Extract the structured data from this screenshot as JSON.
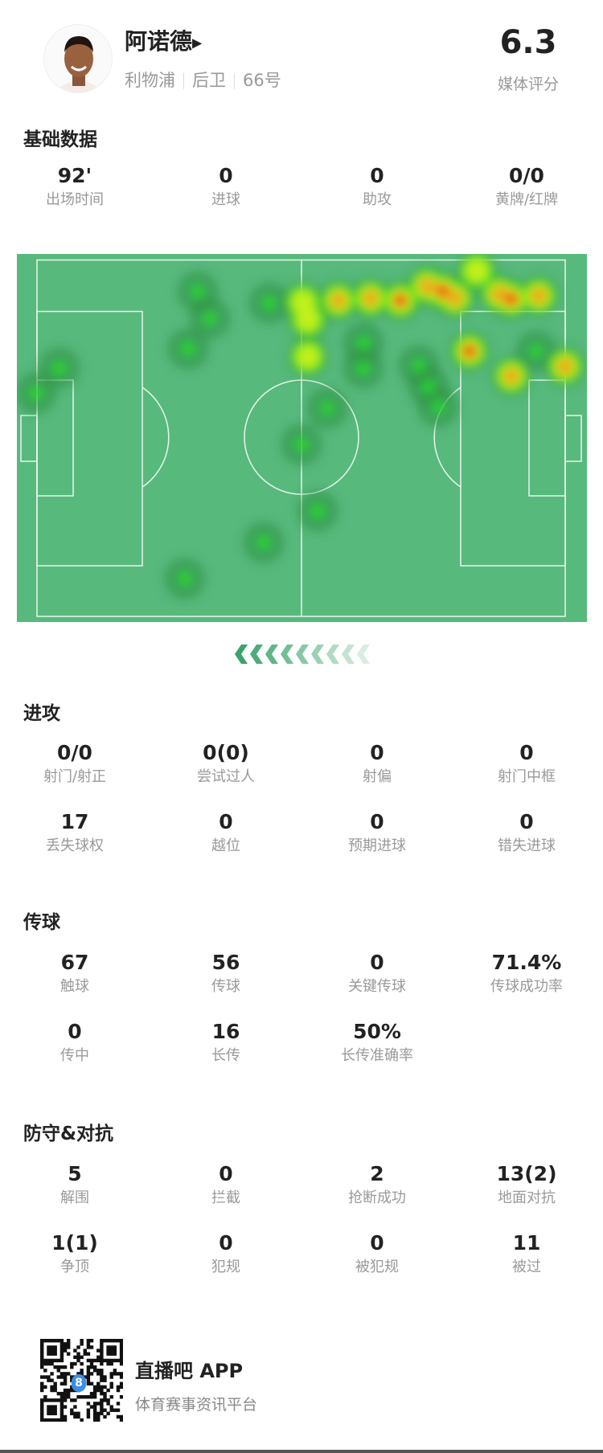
{
  "player": {
    "name": "阿诺德",
    "club": "利物浦",
    "position": "后卫",
    "number": "66号",
    "rating": "6.3",
    "rating_label": "媒体评分"
  },
  "sections": {
    "basic": {
      "title": "基础数据",
      "stats": [
        {
          "value": "92'",
          "label": "出场时间"
        },
        {
          "value": "0",
          "label": "进球"
        },
        {
          "value": "0",
          "label": "助攻"
        },
        {
          "value": "0/0",
          "label": "黄牌/红牌"
        }
      ]
    },
    "attack": {
      "title": "进攻",
      "stats": [
        {
          "value": "0/0",
          "label": "射门/射正"
        },
        {
          "value": "0(0)",
          "label": "尝试过人"
        },
        {
          "value": "0",
          "label": "射偏"
        },
        {
          "value": "0",
          "label": "射门中框"
        },
        {
          "value": "17",
          "label": "丢失球权"
        },
        {
          "value": "0",
          "label": "越位"
        },
        {
          "value": "0",
          "label": "预期进球"
        },
        {
          "value": "0",
          "label": "错失进球"
        }
      ]
    },
    "passing": {
      "title": "传球",
      "stats": [
        {
          "value": "67",
          "label": "触球"
        },
        {
          "value": "56",
          "label": "传球"
        },
        {
          "value": "0",
          "label": "关键传球"
        },
        {
          "value": "71.4%",
          "label": "传球成功率"
        },
        {
          "value": "0",
          "label": "传中"
        },
        {
          "value": "16",
          "label": "长传"
        },
        {
          "value": "50%",
          "label": "长传准确率"
        }
      ]
    },
    "defense": {
      "title": "防守&对抗",
      "stats": [
        {
          "value": "5",
          "label": "解围"
        },
        {
          "value": "0",
          "label": "拦截"
        },
        {
          "value": "2",
          "label": "抢断成功"
        },
        {
          "value": "13(2)",
          "label": "地面对抗"
        },
        {
          "value": "1(1)",
          "label": "争顶"
        },
        {
          "value": "0",
          "label": "犯规"
        },
        {
          "value": "0",
          "label": "被犯规"
        },
        {
          "value": "11",
          "label": "被过"
        }
      ]
    }
  },
  "footer": {
    "app_name": "直播吧 APP",
    "tagline": "体育赛事资讯平台",
    "qr_badge": "8"
  },
  "colors": {
    "pitch": "#58b97d",
    "accent": "#3aa36a"
  }
}
